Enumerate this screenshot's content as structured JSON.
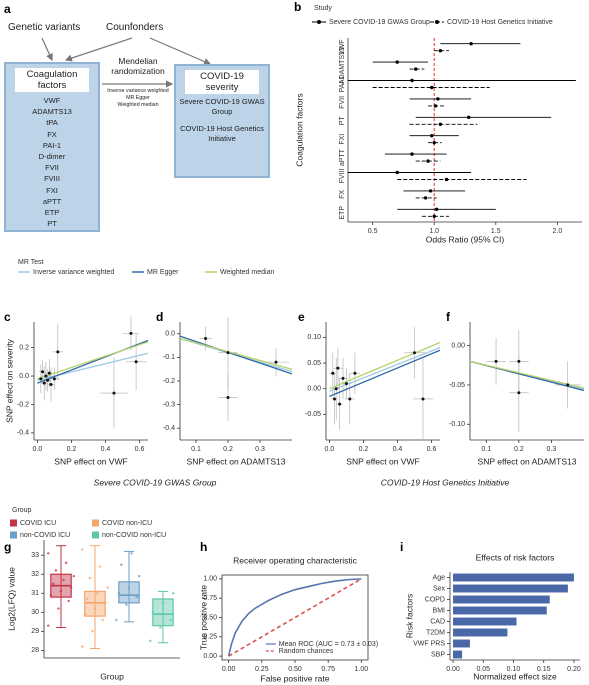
{
  "diagram": {
    "panel": "a",
    "inputs": [
      "Genetic variants",
      "Counfonders"
    ],
    "exposure": {
      "title": "Coagulation factors",
      "items": [
        "VWF",
        "ADAMTS13",
        "tPA",
        "FX",
        "PAI-1",
        "D-dimer",
        "FVII",
        "FVIII",
        "FXI",
        "aPTT",
        "ETP",
        "PT"
      ]
    },
    "method": {
      "title": "Mendelian randomization",
      "items": [
        "Inverse variance weighted",
        "MR Egger",
        "Weighted median"
      ]
    },
    "outcome": {
      "title": "COVID-19 severity",
      "items": [
        "Severe  COVID-19 GWAS Group",
        "COVID-19 Host Genetics Initiative"
      ]
    }
  },
  "mr_legend": {
    "title": "MR Test",
    "items": [
      {
        "name": "Inverse variance weighted",
        "color": "#9ecae1"
      },
      {
        "name": "MR Egger",
        "color": "#2f6aa8"
      },
      {
        "name": "Weighted median",
        "color": "#b5d36a"
      }
    ]
  },
  "captions": [
    "Severe COVID-19 GWAS Group",
    "COVID-19 Host Genetics Initiative"
  ],
  "chart_data": [
    {
      "type": "forest",
      "panel": "b",
      "legend_title": "Study",
      "x_label": "Odds Ratio (95% CI)",
      "y_label": "Coagulation factors",
      "categories": [
        "VWF",
        "ADAMTS13",
        "PAI-1",
        "FVII",
        "PT",
        "FXI",
        "aPTT",
        "FVIII",
        "FX",
        "ETP"
      ],
      "series": [
        {
          "name": "Severe COVID-19 GWAS Group",
          "color": "#000000",
          "line_style": "solid",
          "values": [
            1.3,
            0.7,
            0.82,
            1.03,
            1.28,
            0.98,
            0.82,
            0.7,
            0.97,
            1.02
          ],
          "lower": [
            1.05,
            0.5,
            0.3,
            0.8,
            0.85,
            0.8,
            0.6,
            0.3,
            0.75,
            0.7
          ],
          "upper": [
            1.7,
            0.95,
            2.15,
            1.3,
            1.95,
            1.2,
            1.1,
            1.3,
            1.25,
            1.5
          ]
        },
        {
          "name": "COVID-19 Host Genetics Initiative",
          "color": "#000000",
          "line_style": "dashed",
          "values": [
            1.05,
            0.85,
            0.98,
            1.01,
            1.05,
            1.0,
            0.95,
            1.1,
            0.93,
            1.0
          ],
          "lower": [
            1.0,
            0.8,
            0.5,
            0.95,
            0.8,
            0.95,
            0.85,
            0.7,
            0.85,
            0.9
          ],
          "upper": [
            1.12,
            0.92,
            1.45,
            1.08,
            1.35,
            1.06,
            1.05,
            1.75,
            1.02,
            1.12
          ]
        }
      ],
      "ref_line": 1,
      "ref_color": "#e03030",
      "xlim": [
        0.3,
        2.2
      ],
      "xticks": [
        0.5,
        {
          "value": 1,
          "label": "1.0"
        },
        1.5,
        {
          "value": 2,
          "label": "2.0"
        }
      ]
    },
    {
      "type": "scatter",
      "panel": "c",
      "x_label": "SNP effect on VWF",
      "y_label": "SNP effect on severity",
      "x": [
        0.02,
        0.03,
        0.04,
        0.05,
        0.06,
        0.07,
        0.08,
        0.1,
        0.12,
        0.45,
        0.55,
        0.58
      ],
      "values": [
        -0.02,
        0.03,
        -0.05,
        0.0,
        -0.03,
        0.02,
        -0.06,
        -0.02,
        0.17,
        -0.12,
        0.3,
        0.1
      ],
      "xerr": [
        0.02,
        0.02,
        0.02,
        0.03,
        0.02,
        0.03,
        0.02,
        0.03,
        0.03,
        0.08,
        0.05,
        0.06
      ],
      "yerr": [
        0.1,
        0.08,
        0.12,
        0.1,
        0.08,
        0.1,
        0.12,
        0.08,
        0.2,
        0.25,
        0.12,
        0.2
      ],
      "fits": [
        {
          "x": [
            0,
            0.65
          ],
          "values": [
            -0.03,
            0.16
          ]
        },
        {
          "x": [
            0,
            0.65
          ],
          "values": [
            -0.05,
            0.25
          ]
        },
        {
          "x": [
            0,
            0.65
          ],
          "values": [
            -0.02,
            0.24
          ]
        }
      ],
      "xlim": [
        -0.02,
        0.65
      ],
      "xticks": [
        {
          "value": 0,
          "label": "0.0"
        },
        0.2,
        0.4,
        0.6
      ],
      "ylim": [
        -0.45,
        0.38
      ],
      "yticks": [
        -0.4,
        -0.2,
        {
          "value": 0,
          "label": "0.0"
        },
        0.2
      ]
    },
    {
      "type": "scatter",
      "panel": "d",
      "x_label": "SNP effect on ADAMTS13",
      "x": [
        0.13,
        0.2,
        0.2,
        0.35
      ],
      "values": [
        -0.02,
        -0.08,
        -0.27,
        -0.12
      ],
      "xerr": [
        0.02,
        0.03,
        0.03,
        0.04
      ],
      "yerr": [
        0.05,
        0.15,
        0.1,
        0.06
      ],
      "fits": [
        {
          "x": [
            0.05,
            0.4
          ],
          "values": [
            -0.02,
            -0.16
          ]
        },
        {
          "x": [
            0.05,
            0.4
          ],
          "values": [
            -0.01,
            -0.17
          ]
        },
        {
          "x": [
            0.05,
            0.4
          ],
          "values": [
            -0.02,
            -0.15
          ]
        }
      ],
      "xlim": [
        0.05,
        0.4
      ],
      "xticks": [
        0.1,
        0.2,
        0.3
      ],
      "ylim": [
        -0.45,
        0.05
      ],
      "yticks": [
        -0.4,
        -0.3,
        -0.2,
        -0.1,
        {
          "value": 0,
          "label": "0.0"
        }
      ]
    },
    {
      "type": "scatter",
      "panel": "e",
      "x_label": "SNP effect on VWF",
      "x": [
        0.02,
        0.03,
        0.04,
        0.05,
        0.06,
        0.08,
        0.1,
        0.12,
        0.15,
        0.5,
        0.55
      ],
      "values": [
        0.03,
        -0.02,
        0.0,
        0.04,
        -0.03,
        0.02,
        0.01,
        -0.02,
        0.03,
        0.07,
        -0.02
      ],
      "xerr": [
        0.02,
        0.02,
        0.02,
        0.03,
        0.02,
        0.03,
        0.03,
        0.03,
        0.03,
        0.06,
        0.06
      ],
      "yerr": [
        0.04,
        0.05,
        0.06,
        0.04,
        0.05,
        0.04,
        0.03,
        0.05,
        0.04,
        0.05,
        0.08
      ],
      "fits": [
        {
          "x": [
            0,
            0.65
          ],
          "values": [
            -0.005,
            0.08
          ]
        },
        {
          "x": [
            0,
            0.65
          ],
          "values": [
            -0.015,
            0.075
          ]
        },
        {
          "x": [
            0,
            0.65
          ],
          "values": [
            0.0,
            0.09
          ]
        }
      ],
      "xlim": [
        -0.02,
        0.65
      ],
      "xticks": [
        {
          "value": 0,
          "label": "0.0"
        },
        0.2,
        0.4,
        0.6
      ],
      "ylim": [
        -0.1,
        0.13
      ],
      "yticks": [
        -0.05,
        {
          "value": 0,
          "label": "0.00"
        },
        0.05,
        {
          "value": 0.1,
          "label": "0.10"
        }
      ]
    },
    {
      "type": "scatter",
      "panel": "f",
      "x_label": "SNP effect on ADAMTS13",
      "x": [
        0.13,
        0.2,
        0.2,
        0.35
      ],
      "values": [
        -0.02,
        -0.02,
        -0.06,
        -0.05
      ],
      "xerr": [
        0.03,
        0.03,
        0.03,
        0.04
      ],
      "yerr": [
        0.03,
        0.04,
        0.05,
        0.03
      ],
      "fits": [
        {
          "x": [
            0.05,
            0.4
          ],
          "values": [
            -0.02,
            -0.055
          ]
        },
        {
          "x": [
            0.05,
            0.4
          ],
          "values": [
            -0.02,
            -0.057
          ]
        },
        {
          "x": [
            0.05,
            0.4
          ],
          "values": [
            -0.02,
            -0.054
          ]
        }
      ],
      "xlim": [
        0.05,
        0.4
      ],
      "xticks": [
        0.1,
        0.2,
        0.3
      ],
      "ylim": [
        -0.12,
        0.03
      ],
      "yticks": [
        {
          "value": -0.1,
          "label": "-0.10"
        },
        -0.05,
        {
          "value": 0,
          "label": "0.00"
        }
      ]
    },
    {
      "type": "box",
      "panel": "g",
      "legend_title": "Group",
      "x_label": "Group",
      "y_label": "Log2(LFQ) value",
      "series": [
        {
          "name": "COVID ICU",
          "color": "#c1354a",
          "min": 29.2,
          "q1": 30.8,
          "median": 31.4,
          "q3": 32.0,
          "max": 33.5,
          "points": [
            29.3,
            30.2,
            30.6,
            30.9,
            31.1,
            31.3,
            31.5,
            31.7,
            31.9,
            32.2,
            32.6,
            33.1
          ]
        },
        {
          "name": "COVID non-ICU",
          "color": "#f5a56b",
          "min": 28.1,
          "q1": 29.8,
          "median": 30.5,
          "q3": 31.1,
          "max": 33.5,
          "points": [
            28.2,
            29.0,
            29.6,
            29.9,
            30.2,
            30.5,
            30.7,
            31.0,
            31.3,
            31.8,
            32.4,
            33.3
          ]
        },
        {
          "name": "non-COVID ICU",
          "color": "#6d9ec8",
          "min": 29.5,
          "q1": 30.5,
          "median": 30.9,
          "q3": 31.6,
          "max": 33.2,
          "points": [
            29.6,
            30.4,
            30.8,
            31.0,
            31.3,
            31.9,
            32.5,
            33.1
          ]
        },
        {
          "name": "non-COVID non-ICU",
          "color": "#5cc6a8",
          "min": 28.4,
          "q1": 29.3,
          "median": 29.9,
          "q3": 30.7,
          "max": 31.1,
          "points": [
            28.5,
            29.2,
            29.6,
            30.0,
            30.5,
            31.0
          ]
        }
      ],
      "ylim": [
        27.6,
        33.8
      ],
      "yticks": [
        28,
        29,
        30,
        31,
        32,
        33
      ]
    },
    {
      "type": "line",
      "panel": "h",
      "title": "Receiver operating characteristic",
      "x_label": "False positive rate",
      "y_label": "True positive rate",
      "series": [
        {
          "name": "Mean ROC (AUC = 0.73 ± 0.03)",
          "color": "#5874b0",
          "line_style": "solid",
          "x": [
            0,
            0.02,
            0.05,
            0.1,
            0.15,
            0.2,
            0.3,
            0.4,
            0.5,
            0.6,
            0.7,
            0.8,
            0.9,
            1
          ],
          "values": [
            0,
            0.15,
            0.3,
            0.45,
            0.55,
            0.62,
            0.72,
            0.8,
            0.86,
            0.9,
            0.94,
            0.97,
            0.99,
            1
          ]
        },
        {
          "name": "Random chances",
          "color": "#d9534f",
          "line_style": "dashed",
          "x": [
            0,
            1
          ],
          "values": [
            0,
            1
          ]
        }
      ],
      "xlim": [
        -0.05,
        1.05
      ],
      "xticks": [
        {
          "value": 0,
          "label": "0.00"
        },
        0.25,
        {
          "value": 0.5,
          "label": "0.50"
        },
        0.75,
        {
          "value": 1,
          "label": "1.00"
        }
      ],
      "ylim": [
        -0.05,
        1.05
      ],
      "yticks": [
        {
          "value": 0,
          "label": "0.00"
        },
        0.25,
        {
          "value": 0.5,
          "label": "0.50"
        },
        0.75,
        {
          "value": 1,
          "label": "1.00"
        }
      ]
    },
    {
      "type": "barh",
      "panel": "i",
      "title": "Effects of risk factors",
      "x_label": "Normalized effect size",
      "y_label": "Risk factors",
      "categories": [
        "Age",
        "Sex",
        "COPD",
        "BMI",
        "CAD",
        "T2DM",
        "VWF PRS",
        "SBP"
      ],
      "category_colors": [
        "#333333",
        "#333333",
        "#333333",
        "#333333",
        "#333333",
        "#333333",
        "#d9534f",
        "#333333"
      ],
      "values": [
        0.2,
        0.19,
        0.16,
        0.155,
        0.105,
        0.09,
        0.028,
        0.015
      ],
      "color": "#4a68a8",
      "xlim": [
        -0.005,
        0.21
      ],
      "xticks": [
        {
          "value": 0,
          "label": "0.00"
        },
        0.05,
        {
          "value": 0.1,
          "label": "0.10"
        },
        0.15,
        {
          "value": 0.2,
          "label": "0.20"
        }
      ]
    }
  ]
}
